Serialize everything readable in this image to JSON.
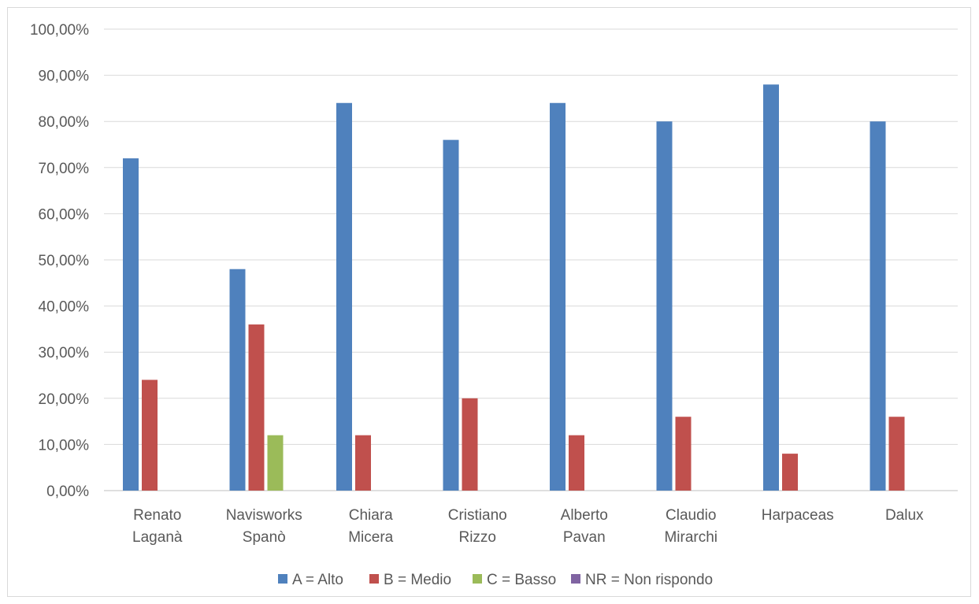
{
  "chart_data": {
    "type": "bar",
    "title": "",
    "xlabel": "",
    "ylabel": "",
    "categories": [
      [
        "Renato",
        "Laganà"
      ],
      [
        "Navisworks",
        "Spanò"
      ],
      [
        "Chiara",
        "Micera"
      ],
      [
        "Cristiano",
        "Rizzo"
      ],
      [
        "Alberto",
        "Pavan"
      ],
      [
        "Claudio",
        "Mirarchi"
      ],
      [
        "Harpaceas"
      ],
      [
        "Dalux"
      ]
    ],
    "series": [
      {
        "name": "A = Alto",
        "color": "#4F81BD",
        "values": [
          72,
          48,
          84,
          76,
          84,
          80,
          88,
          80
        ]
      },
      {
        "name": "B = Medio",
        "color": "#C0504D",
        "values": [
          24,
          36,
          12,
          20,
          12,
          16,
          8,
          16
        ]
      },
      {
        "name": "C = Basso",
        "color": "#9BBB59",
        "values": [
          0,
          12,
          0,
          0,
          0,
          0,
          0,
          0
        ]
      },
      {
        "name": "NR = Non rispondo",
        "color": "#8064A2",
        "values": [
          0,
          0,
          0,
          0,
          0,
          0,
          0,
          0
        ]
      }
    ],
    "ylim": [
      0,
      100
    ],
    "yticks": [
      "0,00%",
      "10,00%",
      "20,00%",
      "30,00%",
      "40,00%",
      "50,00%",
      "60,00%",
      "70,00%",
      "80,00%",
      "90,00%",
      "100,00%"
    ],
    "grid": true,
    "legend_position": "bottom"
  }
}
